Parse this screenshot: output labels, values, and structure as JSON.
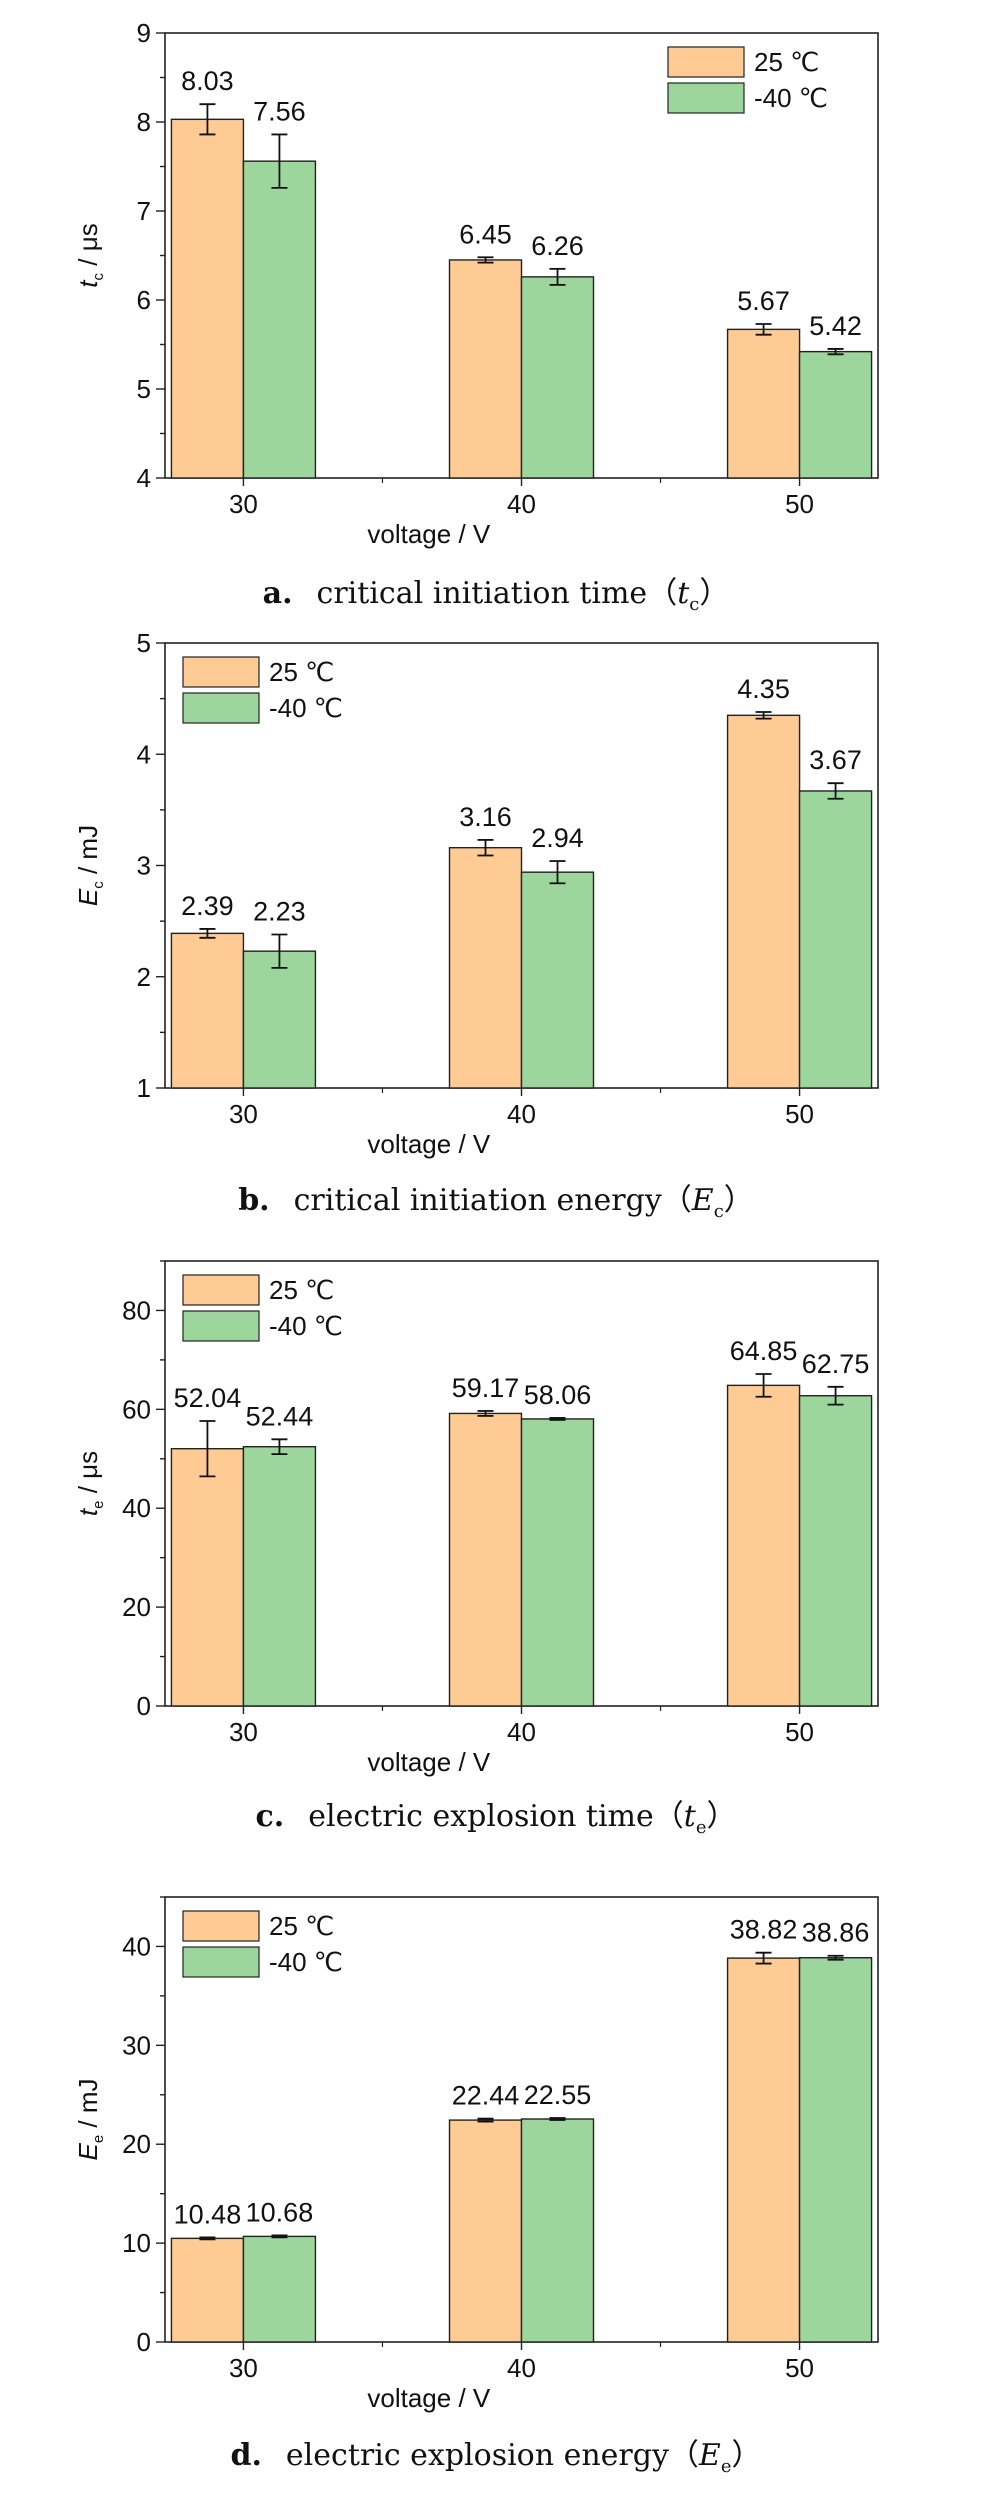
{
  "legend_labels": [
    "25 ℃",
    "-40 ℃"
  ],
  "colors": {
    "series_25": "#fdcb93",
    "series_m40": "#9dd69c",
    "stroke": "#222222"
  },
  "chart_data": [
    {
      "type": "bar",
      "panel_letter": "a.",
      "caption_text": "critical initiation time（",
      "caption_sym": "t",
      "caption_sub": "c",
      "caption_close": "）",
      "ylabel_sym": "t",
      "ylabel_sub": "c",
      "ylabel_unit": " / μs",
      "xlabel": "voltage / V",
      "categories": [
        "30",
        "40",
        "50"
      ],
      "ylim": [
        4,
        9
      ],
      "yticks": [
        4,
        5,
        6,
        7,
        8,
        9
      ],
      "legend_position": "top-right",
      "series": [
        {
          "name": "25 ℃",
          "values": [
            8.03,
            6.45,
            5.67
          ],
          "errors": [
            0.17,
            0.03,
            0.06
          ],
          "labels": [
            "8.03",
            "6.45",
            "5.67"
          ]
        },
        {
          "name": "-40 ℃",
          "values": [
            7.56,
            6.26,
            5.42
          ],
          "errors": [
            0.3,
            0.09,
            0.03
          ],
          "labels": [
            "7.56",
            "6.26",
            "5.42"
          ]
        }
      ]
    },
    {
      "type": "bar",
      "panel_letter": "b.",
      "caption_text": "critical initiation energy（",
      "caption_sym": "E",
      "caption_sub": "c",
      "caption_close": "）",
      "ylabel_sym": "E",
      "ylabel_sub": "c",
      "ylabel_unit": " / mJ",
      "xlabel": "voltage / V",
      "categories": [
        "30",
        "40",
        "50"
      ],
      "ylim": [
        1,
        5
      ],
      "yticks": [
        1,
        2,
        3,
        4,
        5
      ],
      "legend_position": "top-left",
      "series": [
        {
          "name": "25 ℃",
          "values": [
            2.39,
            3.16,
            4.35
          ],
          "errors": [
            0.04,
            0.07,
            0.03
          ],
          "labels": [
            "2.39",
            "3.16",
            "4.35"
          ]
        },
        {
          "name": "-40 ℃",
          "values": [
            2.23,
            2.94,
            3.67
          ],
          "errors": [
            0.15,
            0.1,
            0.07
          ],
          "labels": [
            "2.23",
            "2.94",
            "3.67"
          ]
        }
      ]
    },
    {
      "type": "bar",
      "panel_letter": "c.",
      "caption_text": "electric explosion time（",
      "caption_sym": "t",
      "caption_sub": "e",
      "caption_close": "）",
      "ylabel_sym": "t",
      "ylabel_sub": "e",
      "ylabel_unit": " / μs",
      "xlabel": "voltage / V",
      "categories": [
        "30",
        "40",
        "50"
      ],
      "ylim": [
        0,
        90
      ],
      "yticks": [
        0,
        20,
        40,
        60,
        80
      ],
      "legend_position": "top-left",
      "series": [
        {
          "name": "25 ℃",
          "values": [
            52.04,
            59.17,
            64.85
          ],
          "errors": [
            5.6,
            0.5,
            2.3
          ],
          "labels": [
            "52.04",
            "59.17",
            "64.85"
          ]
        },
        {
          "name": "-40 ℃",
          "values": [
            52.44,
            58.06,
            62.75
          ],
          "errors": [
            1.5,
            0.2,
            1.8
          ],
          "labels": [
            "52.44",
            "58.06",
            "62.75"
          ]
        }
      ]
    },
    {
      "type": "bar",
      "panel_letter": "d.",
      "caption_text": "electric explosion energy（",
      "caption_sym": "E",
      "caption_sub": "e",
      "caption_close": "）",
      "ylabel_sym": "E",
      "ylabel_sub": "e",
      "ylabel_unit": " / mJ",
      "xlabel": "voltage / V",
      "categories": [
        "30",
        "40",
        "50"
      ],
      "ylim": [
        0,
        45
      ],
      "yticks": [
        0,
        10,
        20,
        30,
        40
      ],
      "legend_position": "top-left",
      "series": [
        {
          "name": "25 ℃",
          "values": [
            10.48,
            22.44,
            38.82
          ],
          "errors": [
            0.1,
            0.15,
            0.55
          ],
          "labels": [
            "10.48",
            "22.44",
            "38.82"
          ]
        },
        {
          "name": "-40 ℃",
          "values": [
            10.68,
            22.55,
            38.86
          ],
          "errors": [
            0.1,
            0.1,
            0.2
          ],
          "labels": [
            "10.68",
            "22.55",
            "38.86"
          ]
        }
      ]
    }
  ]
}
